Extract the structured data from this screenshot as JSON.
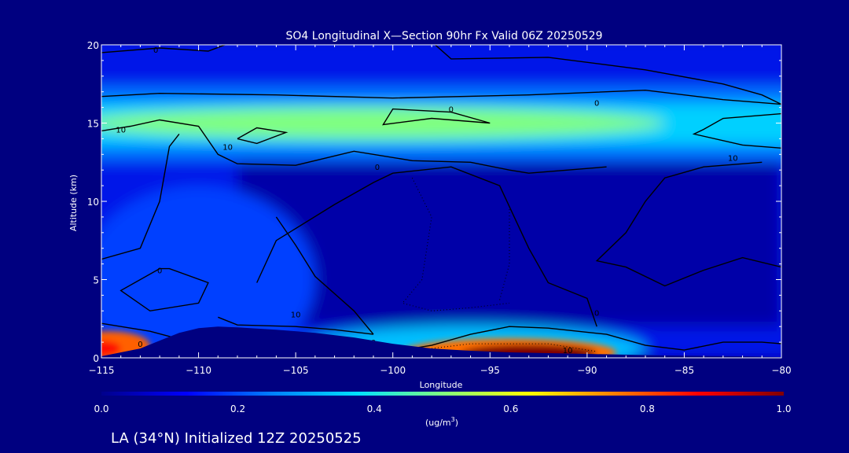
{
  "chart_data": {
    "type": "heatmap",
    "title": "SO4 Longitudinal X—Section 90hr  Fx Valid 06Z 20250529",
    "xlabel": "Longitude",
    "ylabel": "Altitude (km)",
    "xlim": [
      -115,
      -80
    ],
    "ylim": [
      0,
      20
    ],
    "x_ticks": [
      -115,
      -110,
      -105,
      -100,
      -95,
      -90,
      -85,
      -80
    ],
    "x_tick_labels": [
      "−115",
      "−110",
      "−105",
      "−100",
      "−95",
      "−90",
      "−85",
      "−80"
    ],
    "y_ticks": [
      0,
      5,
      10,
      15,
      20
    ],
    "y_tick_labels": [
      "0",
      "5",
      "10",
      "15",
      "20"
    ],
    "colorbar": {
      "min": 0.0,
      "max": 1.0,
      "ticks": [
        "0.0",
        "0.2",
        "0.4",
        "0.6",
        "0.8",
        "1.0"
      ],
      "units_label": "(ug/m",
      "units_sup": "3",
      "units_close": ")",
      "colors": [
        "#00008c",
        "#0000ff",
        "#0080ff",
        "#00e0ff",
        "#80ff80",
        "#ffff00",
        "#ff8000",
        "#ff0000",
        "#800000"
      ]
    },
    "concentration_features": [
      {
        "name": "upper layer",
        "lon": [
          -115,
          -80
        ],
        "alt_center": 15,
        "value": 0.55
      },
      {
        "name": "surface plume",
        "lon": [
          -99,
          -88
        ],
        "alt_center": 0.3,
        "value": 0.95
      },
      {
        "name": "west surface maximum",
        "lon": [
          -115,
          -113
        ],
        "alt_center": 0.5,
        "value": 0.85
      },
      {
        "name": "west slope layer",
        "lon": [
          -115,
          -101
        ],
        "alt_center": 2,
        "value": 0.3
      },
      {
        "name": "mid-level background",
        "lon": [
          -115,
          -80
        ],
        "alt_center": 8,
        "value": 0.05
      }
    ],
    "terrain_profile": {
      "lon": [
        -115,
        -113,
        -112,
        -111,
        -110,
        -109,
        -108,
        -106,
        -104,
        -102,
        -100,
        -98,
        -96,
        -94,
        -92,
        -90,
        -88,
        -86,
        -84,
        -82,
        -80
      ],
      "alt": [
        0.1,
        0.6,
        1.1,
        1.6,
        1.9,
        2.0,
        1.95,
        1.8,
        1.6,
        1.3,
        0.9,
        0.6,
        0.45,
        0.35,
        0.3,
        0.25,
        0.2,
        0.15,
        0.12,
        0.1,
        0.05
      ]
    },
    "contour_labels": [
      "0",
      "0",
      "0",
      "0",
      "0",
      "0",
      "0",
      "0",
      "10",
      "10",
      "10",
      "10",
      "10"
    ]
  },
  "footer": {
    "caption": "LA (34°N) Initialized 12Z 20250525"
  }
}
